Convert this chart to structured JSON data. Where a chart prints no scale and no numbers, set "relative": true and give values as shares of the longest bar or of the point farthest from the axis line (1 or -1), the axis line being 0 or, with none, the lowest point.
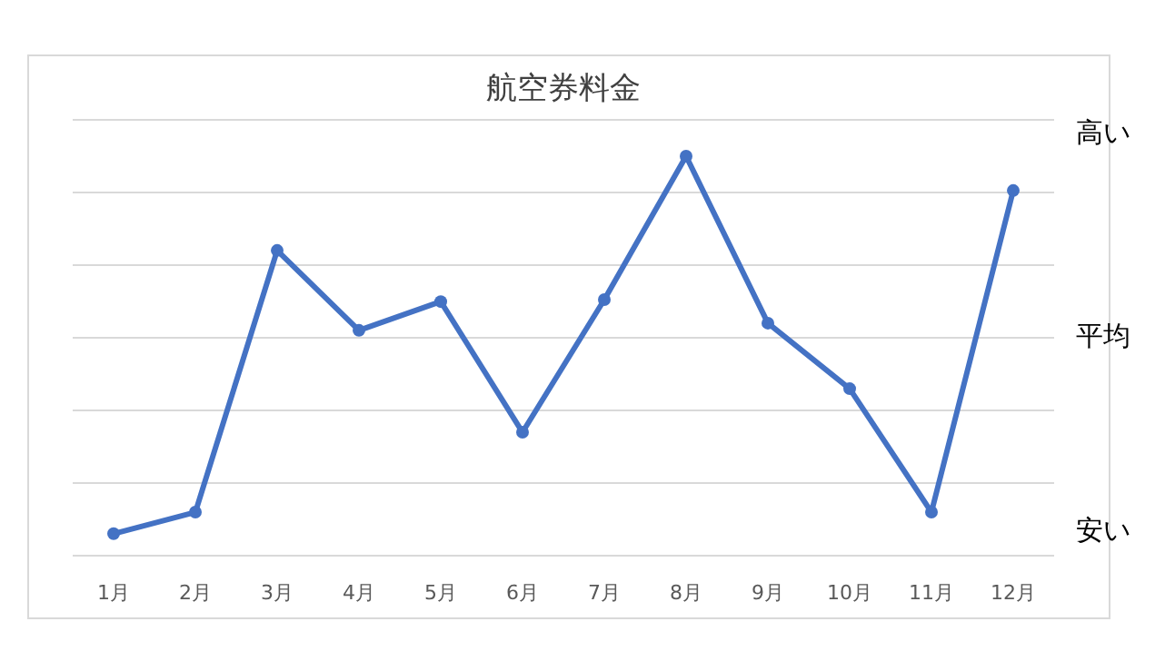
{
  "chart_data": {
    "type": "line",
    "title": "航空券料金",
    "categories": [
      "1月",
      "2月",
      "3月",
      "4月",
      "5月",
      "6月",
      "7月",
      "8月",
      "9月",
      "10月",
      "11月",
      "12月"
    ],
    "series": [
      {
        "color": "#4472c4",
        "values": [
          0.055,
          0.109,
          0.764,
          0.564,
          0.636,
          0.309,
          0.641,
          1,
          0.582,
          0.418,
          0.109,
          0.914
        ]
      }
    ],
    "relative": true,
    "grid": "y",
    "marker": "circle",
    "line_style": "solid",
    "annotations": [
      "高い",
      "平均",
      "安い"
    ]
  }
}
